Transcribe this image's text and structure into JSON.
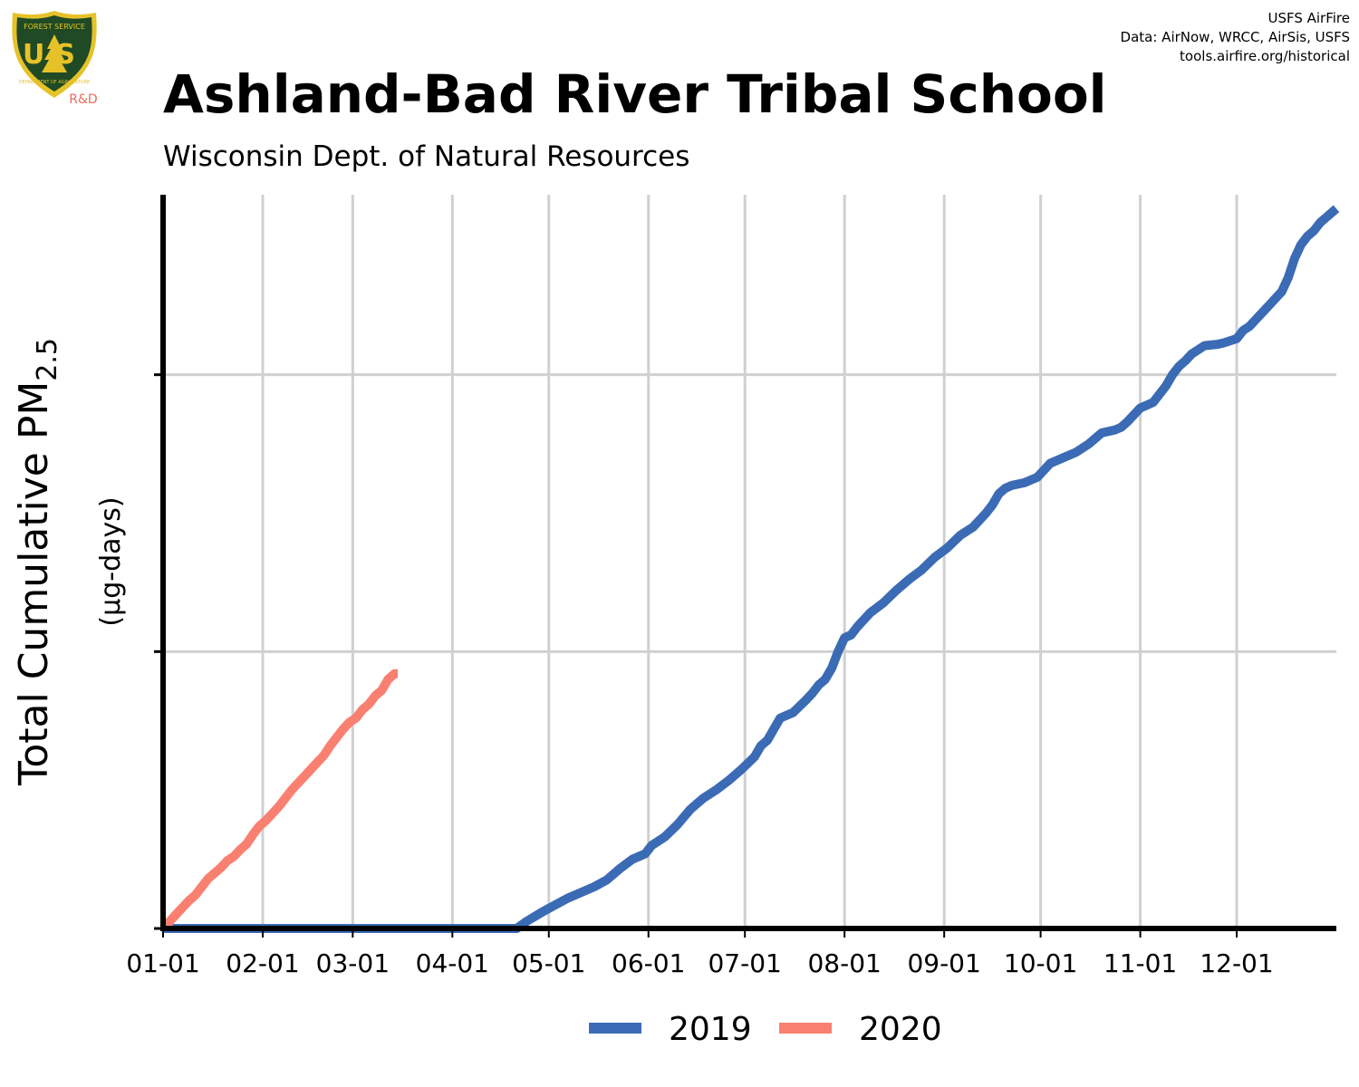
{
  "title": "Ashland-Bad River Tribal School",
  "subtitle": "Wisconsin Dept. of Natural Resources",
  "credits": [
    "USFS AirFire",
    "Data: AirNow, WRCC, AirSis, USFS",
    "tools.airfire.org/historical"
  ],
  "logo": {
    "shield_text": "US",
    "top_text": "FOREST SERVICE",
    "bottom_text": "DEPARTMENT OF AGRICULTURE",
    "tag": "R&D"
  },
  "colors": {
    "s2019": "#3b6bb5",
    "s2020": "#f98070",
    "grid": "#d0d0d0",
    "logo_green": "#1f4a25",
    "logo_gold": "#e6c229",
    "logo_tag": "#f06a5a"
  },
  "chart_data": {
    "type": "line",
    "ylabel_main": "Total Cumulative PM",
    "ylabel_sub": "2.5",
    "ylabel_units": "(µg-days)",
    "x_tick_labels": [
      "01-01",
      "02-01",
      "03-01",
      "04-01",
      "05-01",
      "06-01",
      "07-01",
      "08-01",
      "09-01",
      "10-01",
      "11-01",
      "12-01"
    ],
    "x_tick_days": [
      0,
      31,
      59,
      90,
      120,
      151,
      181,
      212,
      243,
      273,
      304,
      334
    ],
    "xlim": [
      0,
      365
    ],
    "ylim": [
      0,
      2.65
    ],
    "y_ticks": [
      0,
      1,
      2
    ],
    "grid": true,
    "legend_position": "bottom",
    "series": [
      {
        "name": "2019",
        "color": "#3b6bb5",
        "x": [
          0,
          10,
          40,
          70,
          100,
          105,
          110,
          113,
          118,
          122,
          126,
          130,
          134,
          138,
          142,
          146,
          150,
          152,
          156,
          160,
          164,
          168,
          172,
          176,
          180,
          184,
          186,
          188,
          190,
          192,
          196,
          200,
          202,
          204,
          206,
          208,
          210,
          212,
          214,
          216,
          220,
          224,
          228,
          232,
          236,
          240,
          244,
          248,
          252,
          256,
          258,
          260,
          262,
          264,
          268,
          272,
          276,
          280,
          284,
          288,
          292,
          296,
          298,
          300,
          304,
          308,
          310,
          312,
          314,
          316,
          318,
          320,
          324,
          328,
          330,
          334,
          336,
          338,
          340,
          342,
          344,
          346,
          348,
          350,
          352,
          354,
          356,
          358,
          360,
          362,
          364,
          365
        ],
        "y": [
          0,
          0,
          0,
          0,
          0,
          0,
          0,
          0.025,
          0.06,
          0.085,
          0.11,
          0.13,
          0.15,
          0.175,
          0.215,
          0.25,
          0.27,
          0.3,
          0.33,
          0.375,
          0.43,
          0.47,
          0.5,
          0.535,
          0.575,
          0.62,
          0.66,
          0.68,
          0.72,
          0.76,
          0.78,
          0.825,
          0.85,
          0.88,
          0.9,
          0.94,
          1.0,
          1.05,
          1.06,
          1.09,
          1.14,
          1.175,
          1.22,
          1.26,
          1.295,
          1.34,
          1.375,
          1.42,
          1.45,
          1.5,
          1.53,
          1.57,
          1.59,
          1.6,
          1.61,
          1.63,
          1.68,
          1.7,
          1.72,
          1.75,
          1.79,
          1.8,
          1.81,
          1.83,
          1.88,
          1.9,
          1.93,
          1.96,
          2.0,
          2.03,
          2.05,
          2.075,
          2.105,
          2.11,
          2.115,
          2.13,
          2.16,
          2.175,
          2.2,
          2.225,
          2.25,
          2.275,
          2.3,
          2.35,
          2.42,
          2.47,
          2.5,
          2.52,
          2.55,
          2.57,
          2.59,
          2.6
        ]
      },
      {
        "name": "2020",
        "color": "#f98070",
        "x": [
          0,
          2,
          4,
          6,
          8,
          10,
          12,
          14,
          16,
          18,
          20,
          22,
          24,
          26,
          28,
          30,
          32,
          34,
          36,
          38,
          40,
          42,
          44,
          46,
          48,
          50,
          52,
          54,
          56,
          58,
          60,
          62,
          64,
          66,
          68,
          70,
          72,
          73
        ],
        "y": [
          0,
          0.025,
          0.05,
          0.075,
          0.1,
          0.12,
          0.15,
          0.18,
          0.2,
          0.22,
          0.245,
          0.26,
          0.285,
          0.305,
          0.34,
          0.37,
          0.39,
          0.415,
          0.44,
          0.47,
          0.5,
          0.525,
          0.55,
          0.575,
          0.6,
          0.625,
          0.66,
          0.69,
          0.72,
          0.745,
          0.76,
          0.79,
          0.81,
          0.84,
          0.86,
          0.9,
          0.92,
          0.92
        ]
      }
    ]
  }
}
